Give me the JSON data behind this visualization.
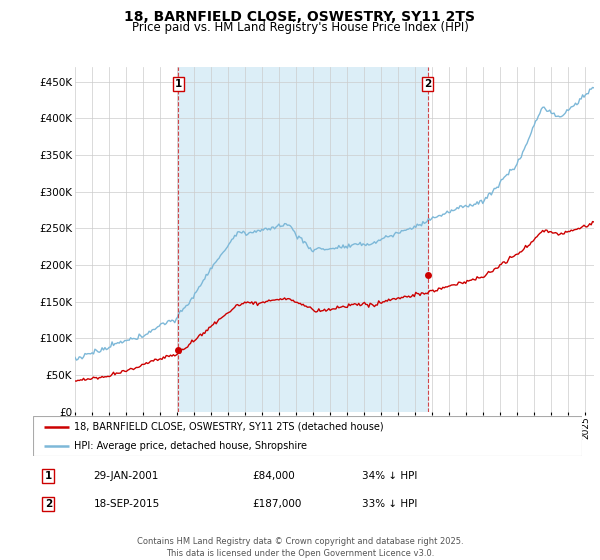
{
  "title": "18, BARNFIELD CLOSE, OSWESTRY, SY11 2TS",
  "subtitle": "Price paid vs. HM Land Registry's House Price Index (HPI)",
  "ylim": [
    0,
    470000
  ],
  "yticks": [
    0,
    50000,
    100000,
    150000,
    200000,
    250000,
    300000,
    350000,
    400000,
    450000
  ],
  "ytick_labels": [
    "£0",
    "£50K",
    "£100K",
    "£150K",
    "£200K",
    "£250K",
    "£300K",
    "£350K",
    "£400K",
    "£450K"
  ],
  "hpi_color": "#7db8d8",
  "hpi_fill_color": "#dceef7",
  "price_color": "#cc0000",
  "annotation_box_color": "#cc0000",
  "background_color": "#ffffff",
  "grid_color": "#cccccc",
  "legend_label_price": "18, BARNFIELD CLOSE, OSWESTRY, SY11 2TS (detached house)",
  "legend_label_hpi": "HPI: Average price, detached house, Shropshire",
  "transaction1_date": "29-JAN-2001",
  "transaction1_price": "£84,000",
  "transaction1_hpi": "34% ↓ HPI",
  "transaction1_year": 2001.08,
  "transaction1_value": 84000,
  "transaction2_date": "18-SEP-2015",
  "transaction2_price": "£187,000",
  "transaction2_hpi": "33% ↓ HPI",
  "transaction2_year": 2015.72,
  "transaction2_value": 187000,
  "footer": "Contains HM Land Registry data © Crown copyright and database right 2025.\nThis data is licensed under the Open Government Licence v3.0.",
  "xmin": 1995,
  "xmax": 2025.5
}
